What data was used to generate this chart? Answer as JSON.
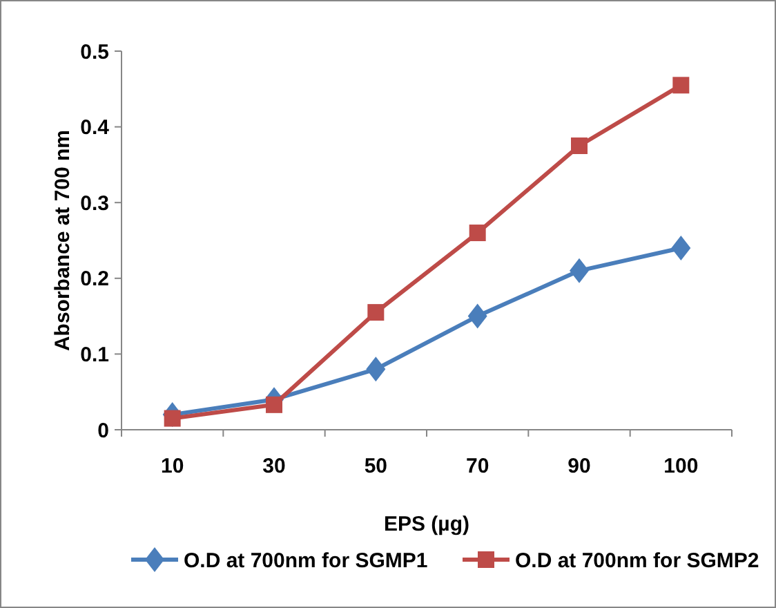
{
  "chart_data": {
    "type": "line",
    "xlabel": "EPS (µg)",
    "ylabel": "Absorbance at 700 nm",
    "categories": [
      "10",
      "30",
      "50",
      "70",
      "90",
      "100"
    ],
    "series": [
      {
        "name": "O.D at 700nm for SGMP1",
        "color": "#4a7ebb",
        "marker": "diamond",
        "values": [
          0.02,
          0.04,
          0.08,
          0.15,
          0.21,
          0.24
        ]
      },
      {
        "name": "O.D at 700nm for SGMP2",
        "color": "#be4b48",
        "marker": "square",
        "values": [
          0.015,
          0.033,
          0.155,
          0.26,
          0.375,
          0.455
        ]
      }
    ],
    "ylim": [
      0,
      0.5
    ],
    "yticks": [
      0,
      0.1,
      0.2,
      0.3,
      0.4,
      0.5
    ],
    "grid": false,
    "legend": "bottom"
  }
}
